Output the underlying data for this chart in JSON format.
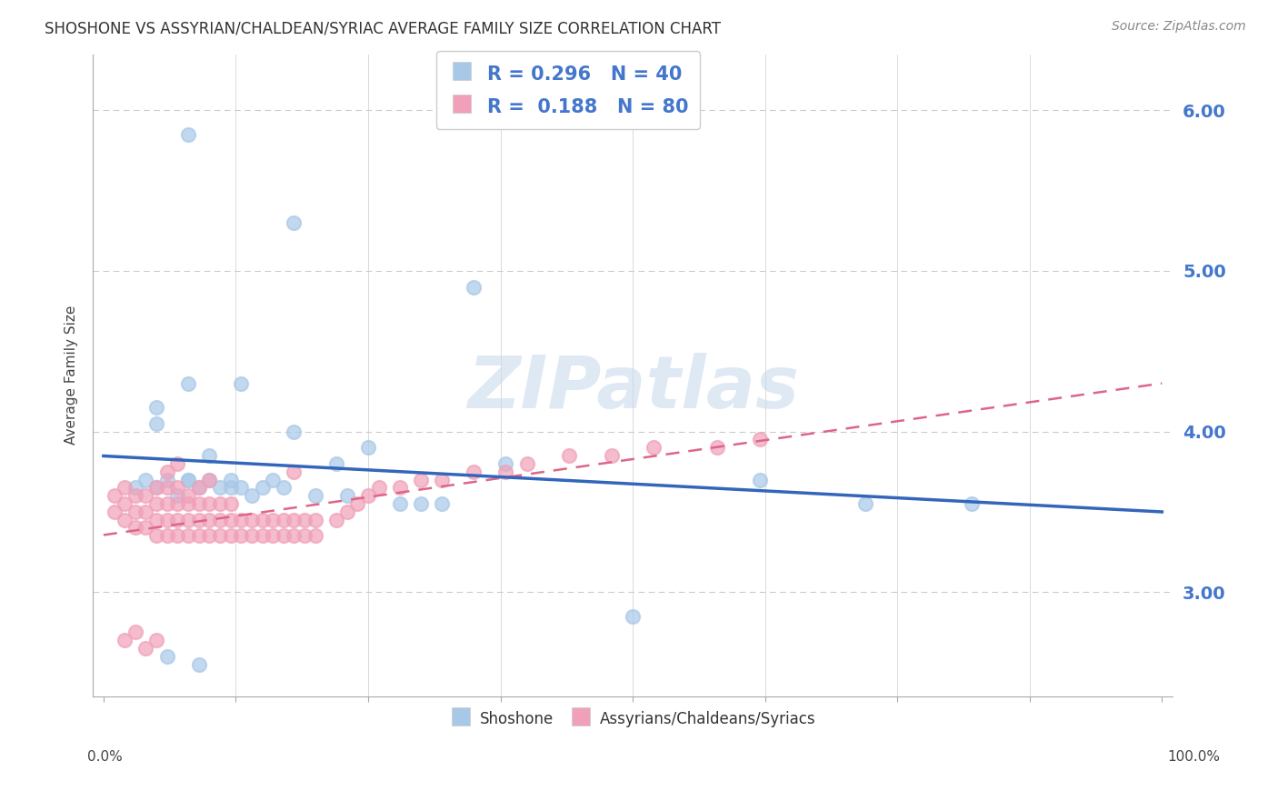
{
  "title": "SHOSHONE VS ASSYRIAN/CHALDEAN/SYRIAC AVERAGE FAMILY SIZE CORRELATION CHART",
  "source": "Source: ZipAtlas.com",
  "ylabel": "Average Family Size",
  "watermark": "ZIPatlas",
  "xlim": [
    0.0,
    100.0
  ],
  "ylim": [
    2.35,
    6.35
  ],
  "yticks": [
    3.0,
    4.0,
    5.0,
    6.0
  ],
  "shoshone_color": "#a8c8e8",
  "assyrian_color": "#f0a0b8",
  "line_blue": "#3366bb",
  "line_pink": "#dd6688",
  "tick_color": "#4477cc",
  "R1": 0.296,
  "N1": 40,
  "R2": 0.188,
  "N2": 80,
  "background_color": "#ffffff",
  "grid_color": "#cccccc",
  "shoshone_x": [
    8,
    18,
    35,
    5,
    5,
    8,
    10,
    13,
    18,
    22,
    25,
    28,
    32,
    3,
    4,
    5,
    6,
    7,
    8,
    9,
    10,
    11,
    12,
    13,
    14,
    15,
    16,
    17,
    20,
    23,
    30,
    38,
    50,
    62,
    72,
    82,
    12,
    8,
    6,
    9
  ],
  "shoshone_y": [
    5.85,
    5.3,
    4.9,
    4.05,
    4.15,
    4.3,
    3.85,
    4.3,
    4.0,
    3.8,
    3.9,
    3.55,
    3.55,
    3.65,
    3.7,
    3.65,
    3.7,
    3.6,
    3.7,
    3.65,
    3.7,
    3.65,
    3.7,
    3.65,
    3.6,
    3.65,
    3.7,
    3.65,
    3.6,
    3.6,
    3.55,
    3.8,
    2.85,
    3.7,
    3.55,
    3.55,
    3.65,
    3.7,
    2.6,
    2.55
  ],
  "assyrian_x": [
    1,
    1,
    2,
    2,
    2,
    3,
    3,
    3,
    4,
    4,
    4,
    5,
    5,
    5,
    5,
    6,
    6,
    6,
    6,
    7,
    7,
    7,
    7,
    8,
    8,
    8,
    9,
    9,
    9,
    10,
    10,
    10,
    11,
    11,
    11,
    12,
    12,
    12,
    13,
    13,
    14,
    14,
    15,
    15,
    16,
    16,
    17,
    17,
    18,
    18,
    19,
    19,
    20,
    20,
    22,
    23,
    24,
    25,
    26,
    28,
    30,
    32,
    35,
    38,
    40,
    44,
    48,
    52,
    58,
    62,
    2,
    3,
    4,
    5,
    18,
    8,
    9,
    10,
    6,
    7
  ],
  "assyrian_y": [
    3.5,
    3.6,
    3.45,
    3.55,
    3.65,
    3.4,
    3.5,
    3.6,
    3.4,
    3.5,
    3.6,
    3.35,
    3.45,
    3.55,
    3.65,
    3.35,
    3.45,
    3.55,
    3.65,
    3.35,
    3.45,
    3.55,
    3.65,
    3.35,
    3.45,
    3.55,
    3.35,
    3.45,
    3.55,
    3.35,
    3.45,
    3.55,
    3.35,
    3.45,
    3.55,
    3.35,
    3.45,
    3.55,
    3.35,
    3.45,
    3.35,
    3.45,
    3.35,
    3.45,
    3.35,
    3.45,
    3.35,
    3.45,
    3.35,
    3.45,
    3.35,
    3.45,
    3.35,
    3.45,
    3.45,
    3.5,
    3.55,
    3.6,
    3.65,
    3.65,
    3.7,
    3.7,
    3.75,
    3.75,
    3.8,
    3.85,
    3.85,
    3.9,
    3.9,
    3.95,
    2.7,
    2.75,
    2.65,
    2.7,
    3.75,
    3.6,
    3.65,
    3.7,
    3.75,
    3.8
  ]
}
